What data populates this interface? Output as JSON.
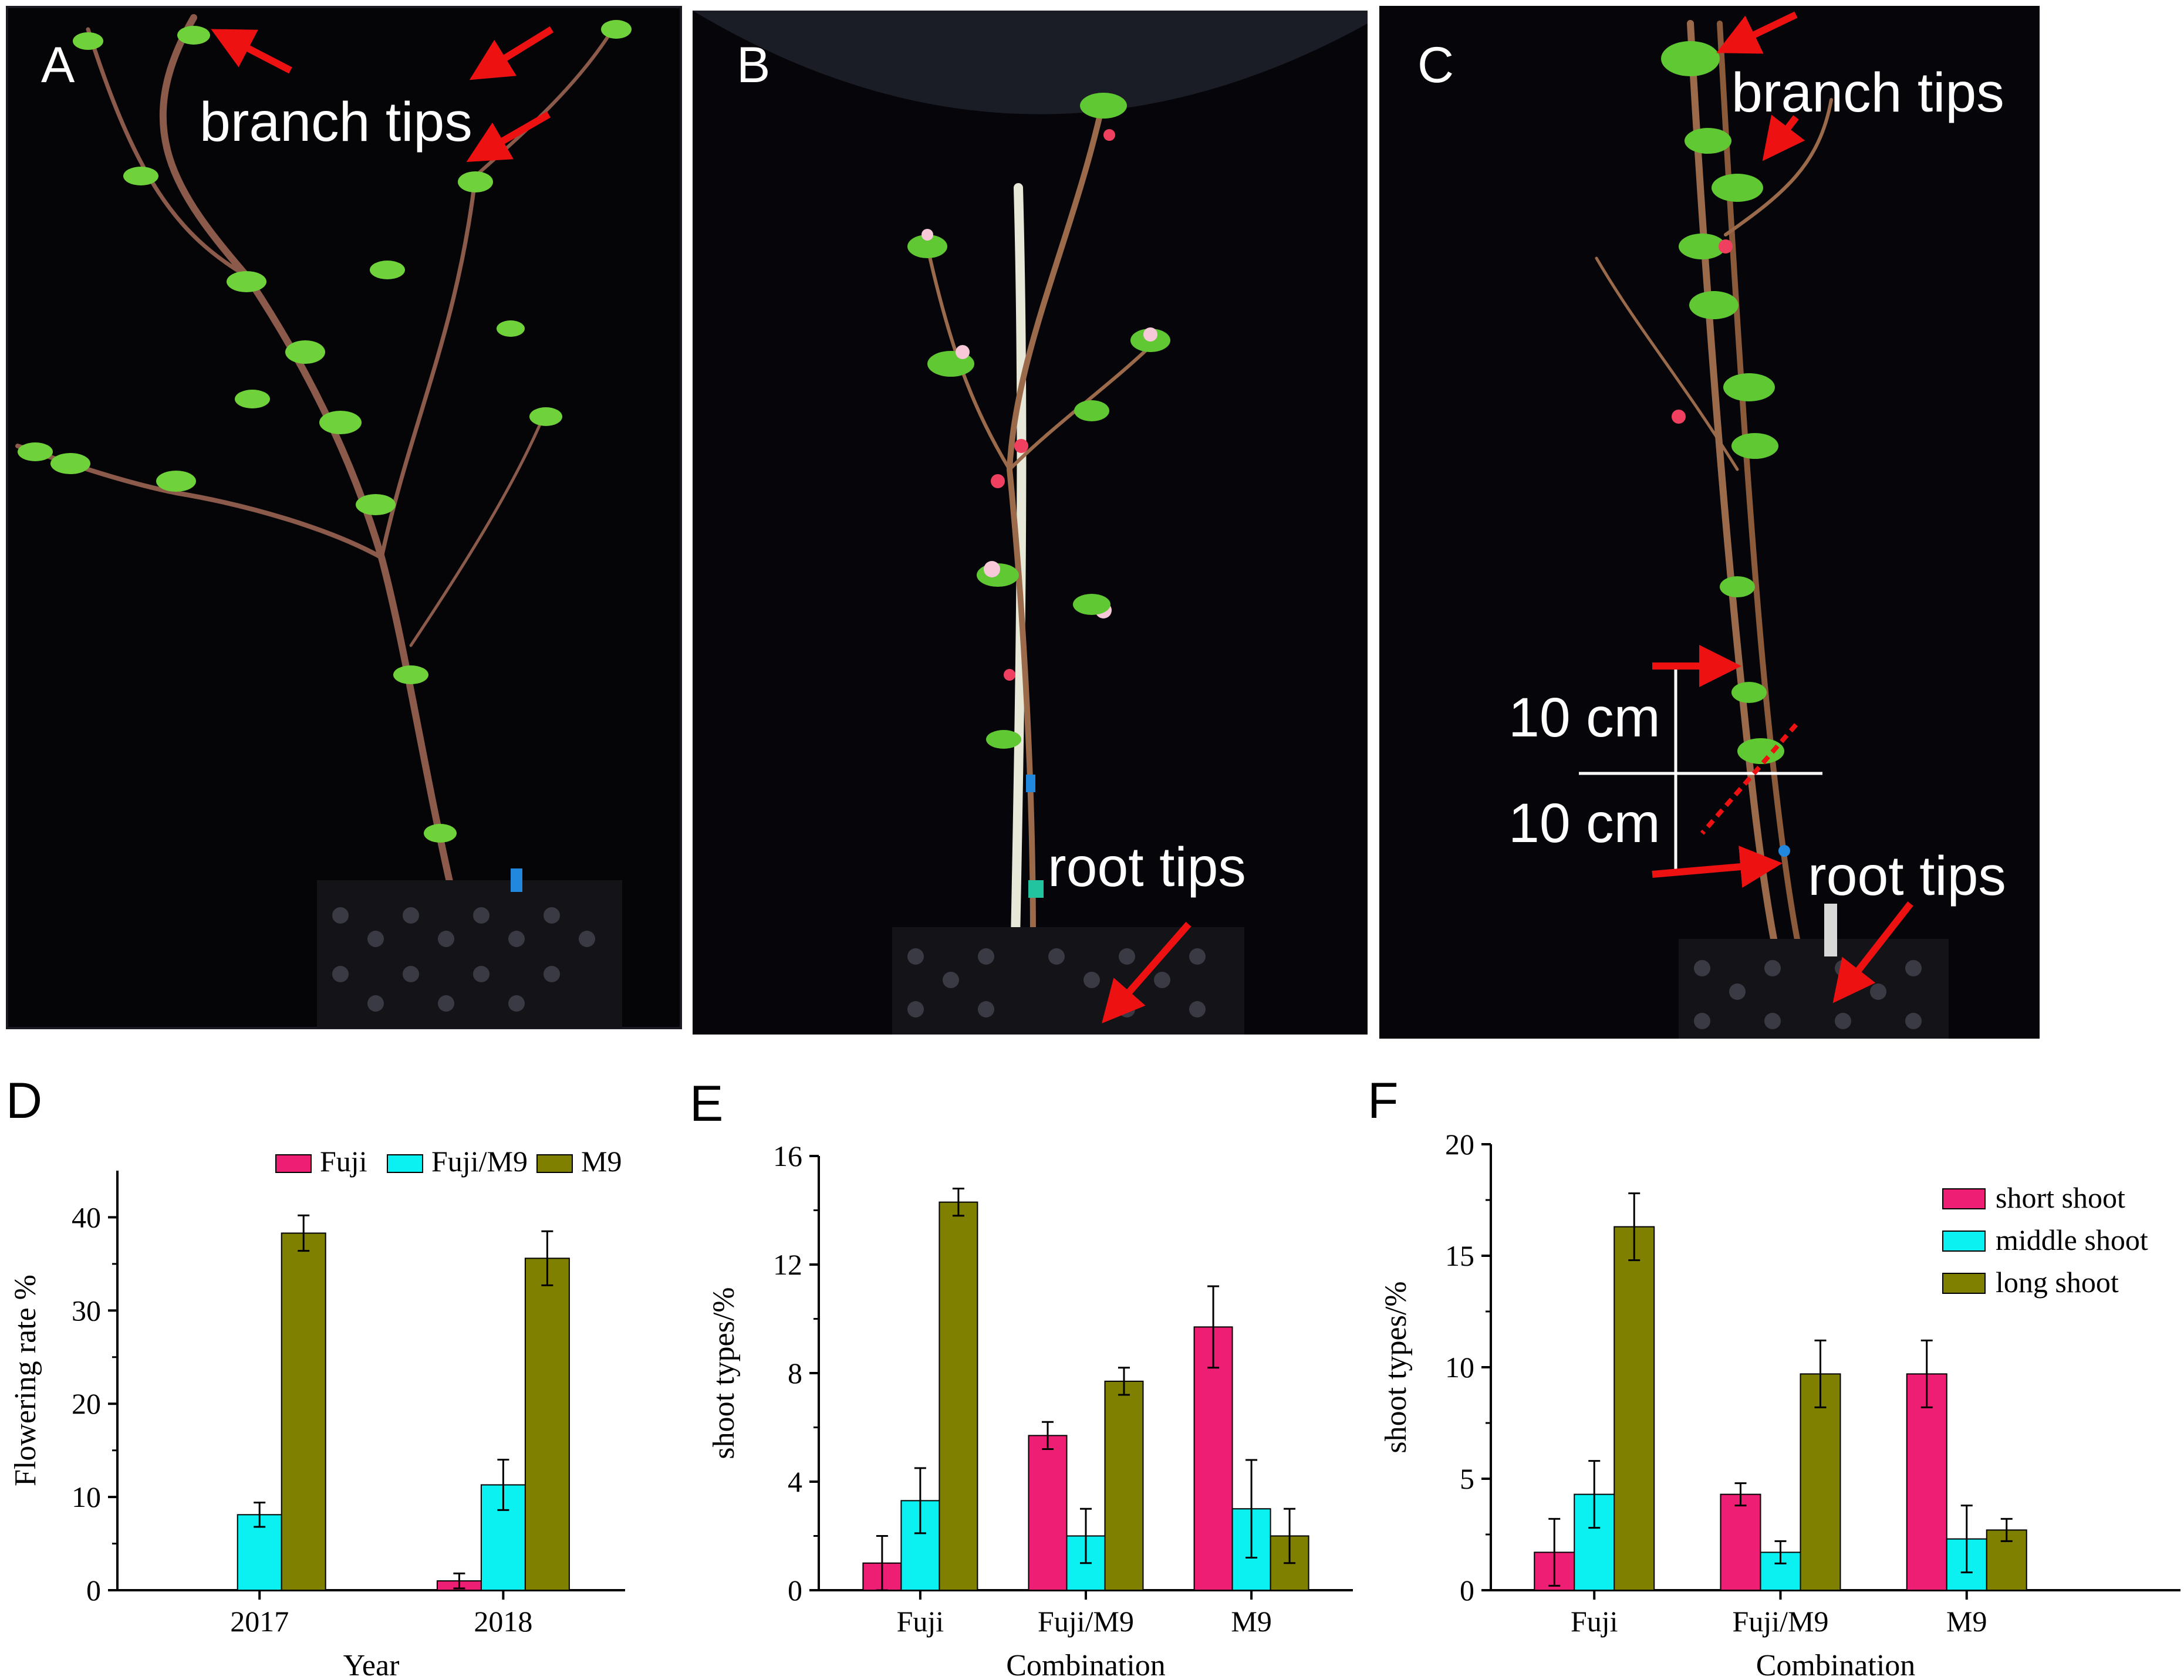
{
  "panels": {
    "A": {
      "letter": "A",
      "label_branch": "branch tips"
    },
    "B": {
      "letter": "B",
      "label_root": "root tips"
    },
    "C": {
      "letter": "C",
      "label_branch": "branch tips",
      "label_root": "root tips",
      "scale_upper": "10 cm",
      "scale_lower": "10 cm"
    },
    "D": {
      "letter": "D"
    },
    "E": {
      "letter": "E"
    },
    "F": {
      "letter": "F"
    }
  },
  "colors": {
    "fuji": "#ee1e74",
    "fujim9": "#0bf0f0",
    "m9": "#7f7f00",
    "arrow": "#ee1111"
  },
  "chart_data": [
    {
      "id": "D",
      "type": "bar",
      "xlabel": "Year",
      "ylabel": "Flowering rate %",
      "categories": [
        "2017",
        "2018"
      ],
      "ylim": [
        0,
        45
      ],
      "yticks": [
        0,
        10,
        20,
        30,
        40
      ],
      "legend_position": "top",
      "series": [
        {
          "name": "Fuji",
          "values": [
            0,
            1.0
          ],
          "errors": [
            0,
            0.8
          ]
        },
        {
          "name": "Fuji/M9",
          "values": [
            8.1,
            11.3
          ],
          "errors": [
            1.3,
            2.7
          ]
        },
        {
          "name": "M9",
          "values": [
            38.3,
            35.6
          ],
          "errors": [
            1.9,
            2.9
          ]
        }
      ]
    },
    {
      "id": "E",
      "type": "bar",
      "xlabel": "Combination",
      "ylabel": "shoot types/%",
      "categories": [
        "Fuji",
        "Fuji/M9",
        "M9"
      ],
      "ylim": [
        0,
        16
      ],
      "yticks": [
        0,
        4,
        8,
        12,
        16
      ],
      "legend_position": "none",
      "series": [
        {
          "name": "short shoot",
          "values": [
            1.0,
            5.7,
            9.7
          ],
          "errors": [
            1.0,
            0.5,
            1.5
          ]
        },
        {
          "name": "middle shoot",
          "values": [
            3.3,
            2.0,
            3.0
          ],
          "errors": [
            1.2,
            1.0,
            1.8
          ]
        },
        {
          "name": "long shoot",
          "values": [
            14.3,
            7.7,
            2.0
          ],
          "errors": [
            0.5,
            0.5,
            1.0
          ]
        }
      ]
    },
    {
      "id": "F",
      "type": "bar",
      "xlabel": "Combination",
      "ylabel": "shoot types/%",
      "categories": [
        "Fuji",
        "Fuji/M9",
        "M9"
      ],
      "ylim": [
        0,
        20
      ],
      "yticks": [
        0,
        5,
        10,
        15,
        20
      ],
      "legend_position": "right",
      "series": [
        {
          "name": "short shoot",
          "values": [
            1.7,
            4.3,
            9.7
          ],
          "errors": [
            1.5,
            0.5,
            1.5
          ]
        },
        {
          "name": "middle shoot",
          "values": [
            4.3,
            1.7,
            2.3
          ],
          "errors": [
            1.5,
            0.5,
            1.5
          ]
        },
        {
          "name": "long shoot",
          "values": [
            16.3,
            9.7,
            2.7
          ],
          "errors": [
            1.5,
            1.5,
            0.5
          ]
        }
      ]
    }
  ]
}
